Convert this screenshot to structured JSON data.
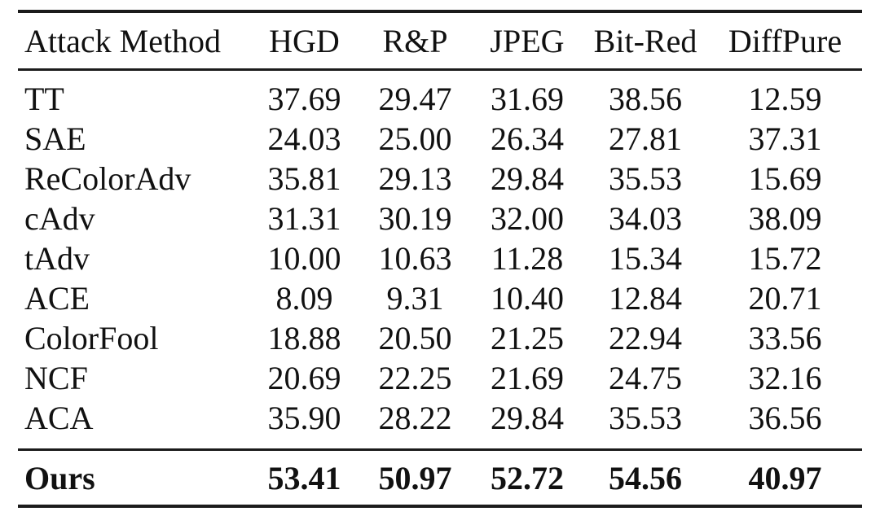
{
  "table": {
    "columns": [
      "Attack Method",
      "HGD",
      "R&P",
      "JPEG",
      "Bit-Red",
      "DiffPure"
    ],
    "rows": [
      {
        "method": "TT",
        "values": [
          "37.69",
          "29.47",
          "31.69",
          "38.56",
          "12.59"
        ]
      },
      {
        "method": "SAE",
        "values": [
          "24.03",
          "25.00",
          "26.34",
          "27.81",
          "37.31"
        ]
      },
      {
        "method": "ReColorAdv",
        "values": [
          "35.81",
          "29.13",
          "29.84",
          "35.53",
          "15.69"
        ]
      },
      {
        "method": "cAdv",
        "values": [
          "31.31",
          "30.19",
          "32.00",
          "34.03",
          "38.09"
        ]
      },
      {
        "method": "tAdv",
        "values": [
          "10.00",
          "10.63",
          "11.28",
          "15.34",
          "15.72"
        ]
      },
      {
        "method": "ACE",
        "values": [
          "8.09",
          "9.31",
          "10.40",
          "12.84",
          "20.71"
        ]
      },
      {
        "method": "ColorFool",
        "values": [
          "18.88",
          "20.50",
          "21.25",
          "22.94",
          "33.56"
        ]
      },
      {
        "method": "NCF",
        "values": [
          "20.69",
          "22.25",
          "21.69",
          "24.75",
          "32.16"
        ]
      },
      {
        "method": "ACA",
        "values": [
          "35.90",
          "28.22",
          "29.84",
          "35.53",
          "36.56"
        ]
      },
      {
        "method": "Ours",
        "values": [
          "53.41",
          "50.97",
          "52.72",
          "54.56",
          "40.97"
        ]
      }
    ],
    "colors": {
      "text": "#111111",
      "rule": "#1b1b1b",
      "background": "#ffffff"
    }
  }
}
